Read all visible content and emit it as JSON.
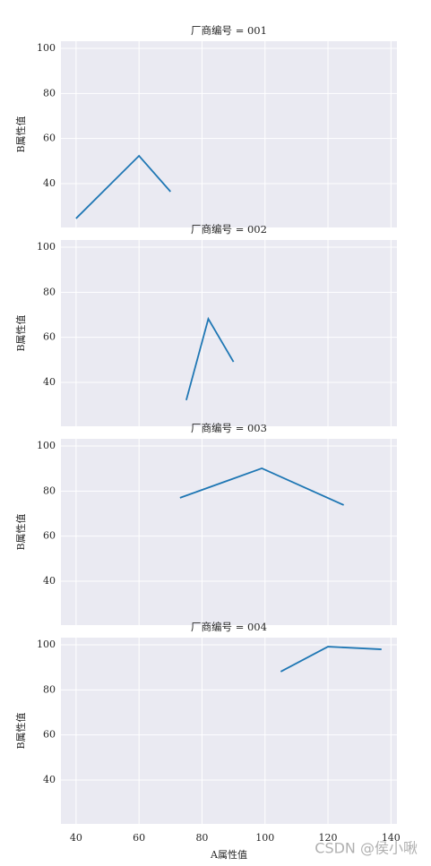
{
  "chart_data": [
    {
      "type": "line",
      "title": "厂商编号 = 001",
      "ylabel": "B属性值",
      "color": "#1f77b4",
      "grid": true,
      "x": [
        40,
        60,
        70
      ],
      "values": [
        24.5,
        52.3,
        36.4
      ],
      "xlim": [
        35.2,
        141.9
      ],
      "xticks": [
        40,
        60,
        80,
        100,
        120,
        140
      ],
      "ylim": [
        20.5,
        103.2
      ],
      "yticks": [
        40,
        60,
        80,
        100
      ]
    },
    {
      "type": "line",
      "title": "厂商编号 = 002",
      "ylabel": "B属性值",
      "color": "#1f77b4",
      "grid": true,
      "x": [
        75,
        82,
        90
      ],
      "values": [
        32.1,
        68.2,
        49.1
      ],
      "xlim": [
        35.2,
        141.9
      ],
      "xticks": [
        40,
        60,
        80,
        100,
        120,
        140
      ],
      "ylim": [
        20.5,
        103.2
      ],
      "yticks": [
        40,
        60,
        80,
        100
      ]
    },
    {
      "type": "line",
      "title": "厂商编号 = 003",
      "ylabel": "B属性值",
      "color": "#1f77b4",
      "grid": true,
      "x": [
        73,
        99,
        125
      ],
      "values": [
        77.0,
        90.1,
        73.8
      ],
      "xlim": [
        35.2,
        141.9
      ],
      "xticks": [
        40,
        60,
        80,
        100,
        120,
        140
      ],
      "ylim": [
        20.5,
        103.2
      ],
      "yticks": [
        40,
        60,
        80,
        100
      ]
    },
    {
      "type": "line",
      "title": "厂商编号 = 004",
      "ylabel": "B属性值",
      "xlabel": "A属性值",
      "color": "#1f77b4",
      "grid": true,
      "x": [
        105,
        120,
        137
      ],
      "values": [
        88.1,
        99.2,
        98.0
      ],
      "xlim": [
        35.2,
        141.9
      ],
      "xticks": [
        40,
        60,
        80,
        100,
        120,
        140
      ],
      "ylim": [
        20.5,
        103.2
      ],
      "yticks": [
        40,
        60,
        80,
        100
      ]
    }
  ],
  "watermark": "CSDN @侯小啾"
}
